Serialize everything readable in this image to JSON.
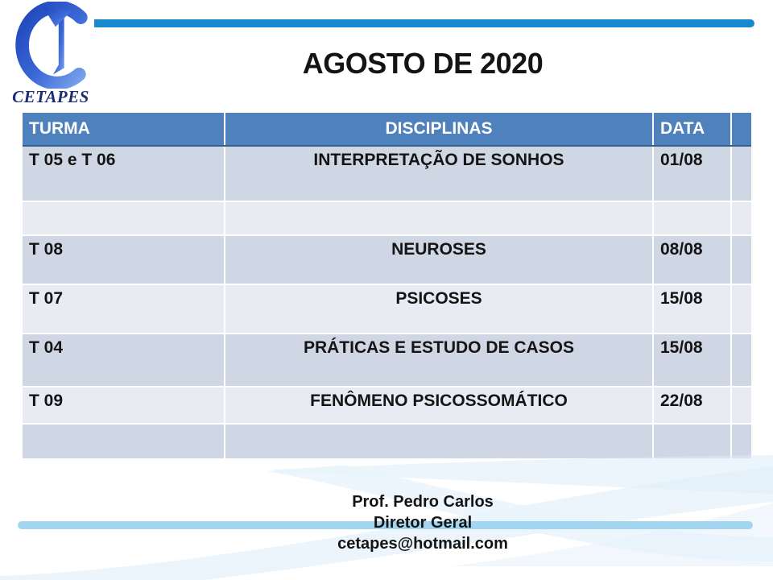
{
  "slide": {
    "logo": {
      "letter": "C",
      "text": "CETAPES"
    },
    "title": "AGOSTO DE 2020",
    "table": {
      "columns": [
        "TURMA",
        "DISCIPLINAS",
        "DATA",
        ""
      ],
      "rows": [
        {
          "turma": "T 05 e T 06",
          "disciplina": "INTERPRETAÇÃO DE SONHOS",
          "data": "01/08"
        },
        {
          "turma": "",
          "disciplina": "",
          "data": ""
        },
        {
          "turma": "T 08",
          "disciplina": "NEUROSES",
          "data": "08/08"
        },
        {
          "turma": "T 07",
          "disciplina": "PSICOSES",
          "data": "15/08"
        },
        {
          "turma": "T 04",
          "disciplina": "PRÁTICAS E ESTUDO DE CASOS",
          "data": "15/08"
        },
        {
          "turma": "T 09",
          "disciplina": "FENÔMENO PSICOSSOMÁTICO",
          "data": "22/08"
        },
        {
          "turma": "",
          "disciplina": "",
          "data": ""
        }
      ]
    },
    "footer": {
      "line1": "Prof. Pedro Carlos",
      "line2": "Diretor Geral",
      "line3": "cetapes@hotmail.com"
    },
    "colors": {
      "header_blue": "#4f81bd",
      "band_dark": "#d0d7e4",
      "band_light": "#e9ebf2",
      "top_bar": "#1789ce",
      "footer_band": "#a2d5f0",
      "logo_blue": "#2b52c4",
      "logo_text": "#1b2c73"
    }
  }
}
